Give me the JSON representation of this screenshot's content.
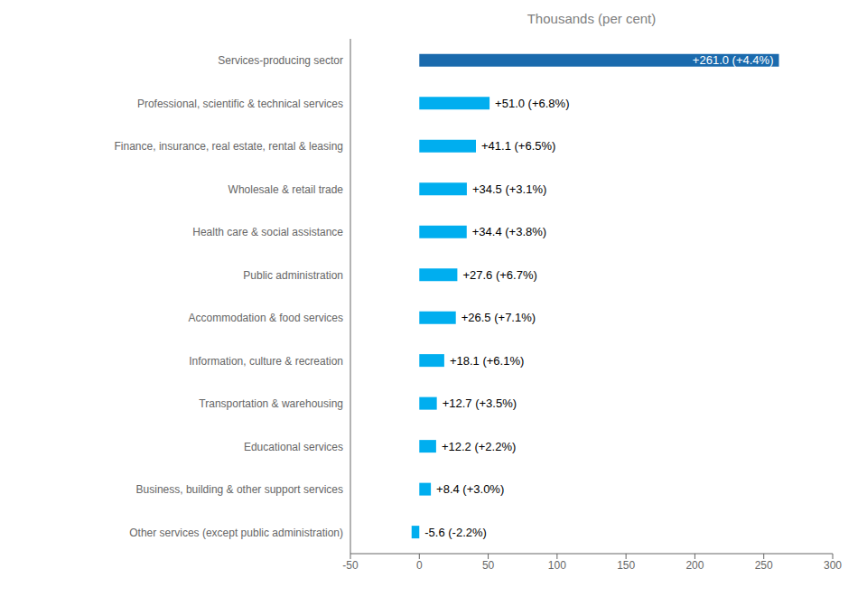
{
  "chart_data": {
    "type": "bar",
    "orientation": "horizontal",
    "title": "Thousands  (per cent)",
    "categories": [
      "Other services (except public administration)",
      "Business, building & other support services",
      "Educational services",
      "Transportation & warehousing",
      "Information, culture & recreation",
      "Accommodation &  food services",
      "Public administration",
      "Health care & social assistance",
      "Wholesale & retail trade",
      "Finance, insurance, real estate, rental & leasing",
      "Professional, scientific & technical services",
      "Services-producing sector"
    ],
    "values": [
      -5.6,
      8.4,
      12.2,
      12.7,
      18.1,
      26.5,
      27.6,
      34.4,
      34.5,
      41.1,
      51.0,
      261.0
    ],
    "value_labels": [
      "-5.6 (-2.2%)",
      "+8.4 (+3.0%)",
      "+12.2 (+2.2%)",
      "+12.7 (+3.5%)",
      "+18.1 (+6.1%)",
      "+26.5 (+7.1%)",
      "+27.6 (+6.7%)",
      "+34.4 (+3.8%)",
      "+34.5 (+3.1%)",
      "+41.1 (+6.5%)",
      "+51.0 (+6.8%)",
      "+261.0 (+4.4%)"
    ],
    "data_labels": true,
    "colors": [
      "#00aeef",
      "#00aeef",
      "#00aeef",
      "#00aeef",
      "#00aeef",
      "#00aeef",
      "#00aeef",
      "#00aeef",
      "#00aeef",
      "#00aeef",
      "#00aeef",
      "#1a6aad"
    ],
    "xlim": [
      -50,
      300
    ],
    "xticks": [
      -50,
      0,
      50,
      100,
      150,
      200,
      250,
      300
    ],
    "grid": false
  }
}
